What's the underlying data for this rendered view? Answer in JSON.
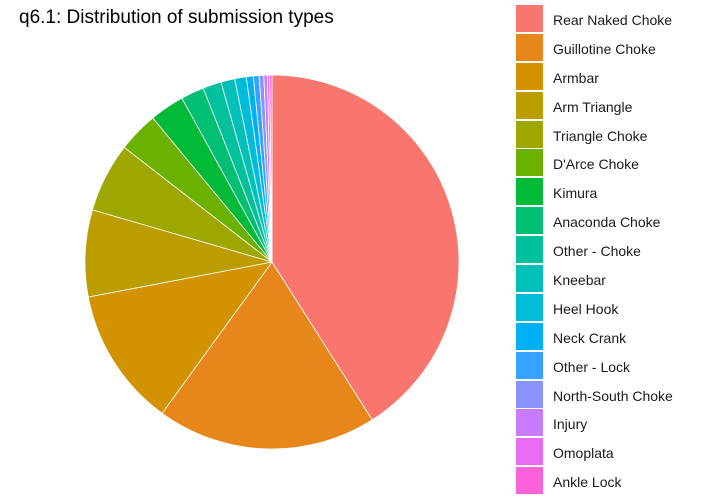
{
  "chart_data": {
    "type": "pie",
    "title": "q6.1: Distribution of submission types",
    "legend_position": "right",
    "start_angle": "top, clockwise",
    "slices": [
      {
        "name": "Rear Naked Choke",
        "value": 41.0,
        "color": "#F8766D"
      },
      {
        "name": "Guillotine Choke",
        "value": 19.0,
        "color": "#E7861B"
      },
      {
        "name": "Armbar",
        "value": 12.0,
        "color": "#D39200"
      },
      {
        "name": "Arm Triangle",
        "value": 7.5,
        "color": "#BB9D00"
      },
      {
        "name": "Triangle Choke",
        "value": 6.0,
        "color": "#9EA700"
      },
      {
        "name": "D'Arce Choke",
        "value": 3.5,
        "color": "#6BB100"
      },
      {
        "name": "Kimura",
        "value": 3.0,
        "color": "#00BA38"
      },
      {
        "name": "Anaconda Choke",
        "value": 2.0,
        "color": "#00BF74"
      },
      {
        "name": "Other - Choke",
        "value": 1.6,
        "color": "#00C19C"
      },
      {
        "name": "Kneebar",
        "value": 1.2,
        "color": "#00C0B8"
      },
      {
        "name": "Heel Hook",
        "value": 1.0,
        "color": "#00BCD8"
      },
      {
        "name": "Neck Crank",
        "value": 0.6,
        "color": "#00B0F6"
      },
      {
        "name": "Other - Lock",
        "value": 0.5,
        "color": "#35A2FF"
      },
      {
        "name": "North-South Choke",
        "value": 0.4,
        "color": "#8B93FF"
      },
      {
        "name": "Injury",
        "value": 0.3,
        "color": "#C77CFF"
      },
      {
        "name": "Omoplata",
        "value": 0.2,
        "color": "#E76BF3"
      },
      {
        "name": "Ankle Lock",
        "value": 0.2,
        "color": "#FA62DB"
      }
    ]
  }
}
